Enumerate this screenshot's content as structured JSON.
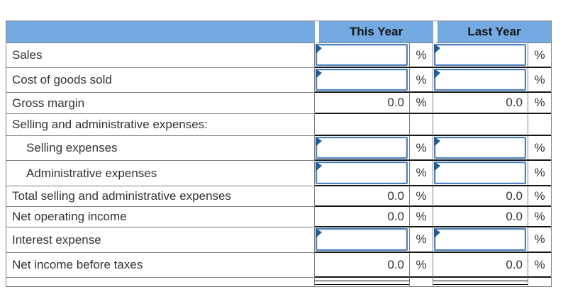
{
  "header": {
    "col_this_year": "This Year",
    "col_last_year": "Last Year"
  },
  "unit_symbol": "%",
  "input_default": "",
  "rows": [
    {
      "label": "Sales",
      "kind": "input",
      "indent": 0
    },
    {
      "label": "Cost of goods sold",
      "kind": "input",
      "indent": 0
    },
    {
      "label": "Gross margin",
      "kind": "computed",
      "indent": 0,
      "this_year": "0.0",
      "last_year": "0.0"
    },
    {
      "label": "Selling and administrative expenses:",
      "kind": "section",
      "indent": 0
    },
    {
      "label": "Selling expenses",
      "kind": "input",
      "indent": 1
    },
    {
      "label": "Administrative expenses",
      "kind": "input",
      "indent": 1
    },
    {
      "label": "Total selling and administrative expenses",
      "kind": "computed",
      "indent": 0,
      "this_year": "0.0",
      "last_year": "0.0"
    },
    {
      "label": "Net operating income",
      "kind": "computed",
      "indent": 0,
      "this_year": "0.0",
      "last_year": "0.0"
    },
    {
      "label": "Interest expense",
      "kind": "input",
      "indent": 0
    },
    {
      "label": "Net income before taxes",
      "kind": "computed",
      "indent": 0,
      "this_year": "0.0",
      "last_year": "0.0"
    }
  ],
  "footer": {
    "underline_style": "double"
  },
  "colors": {
    "header_bg": "#74a9e1",
    "grid_line_gray": "#7f7f7f",
    "rule_black": "#141414",
    "input_border": "#4f81bd",
    "input_marker": "#1f5c99",
    "text": "#333333"
  }
}
